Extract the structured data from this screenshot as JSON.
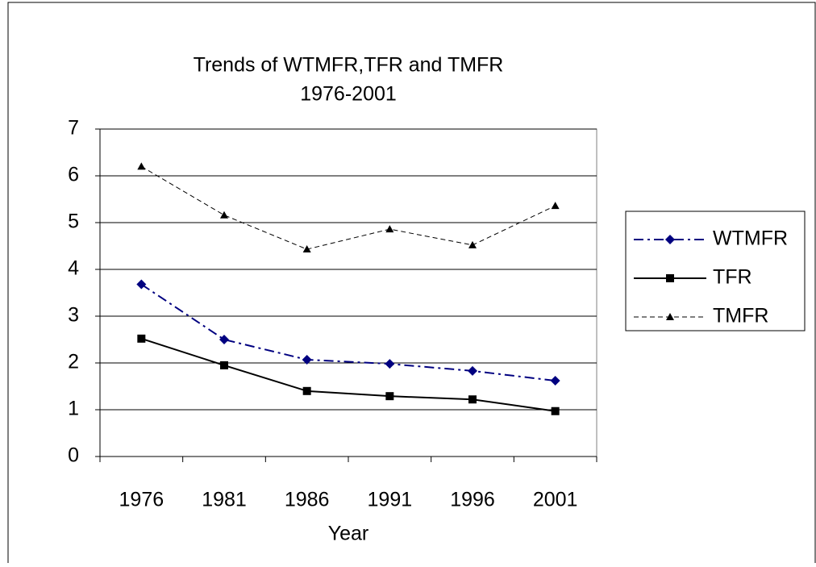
{
  "chart_data": {
    "type": "line",
    "title": "Trends of WTMFR,TFR and TMFR",
    "subtitle": "1976-2001",
    "x_label": "Year",
    "categories": [
      "1976",
      "1981",
      "1986",
      "1991",
      "1996",
      "2001"
    ],
    "series": [
      {
        "name": "WTMFR",
        "color": "#000080",
        "dash": "dash-dot",
        "marker": "diamond",
        "values": [
          3.68,
          2.5,
          2.07,
          1.98,
          1.83,
          1.62
        ]
      },
      {
        "name": "TFR",
        "color": "#000000",
        "dash": "solid",
        "marker": "square",
        "values": [
          2.52,
          1.95,
          1.4,
          1.29,
          1.22,
          0.97
        ]
      },
      {
        "name": "TMFR",
        "color": "#000000",
        "dash": "dashed",
        "marker": "triangle",
        "values": [
          6.2,
          5.16,
          4.43,
          4.86,
          4.52,
          5.36
        ]
      }
    ],
    "ylim": [
      0,
      7
    ],
    "yticks": [
      0,
      1,
      2,
      3,
      4,
      5,
      6,
      7
    ],
    "grid": true,
    "legend": "right"
  }
}
